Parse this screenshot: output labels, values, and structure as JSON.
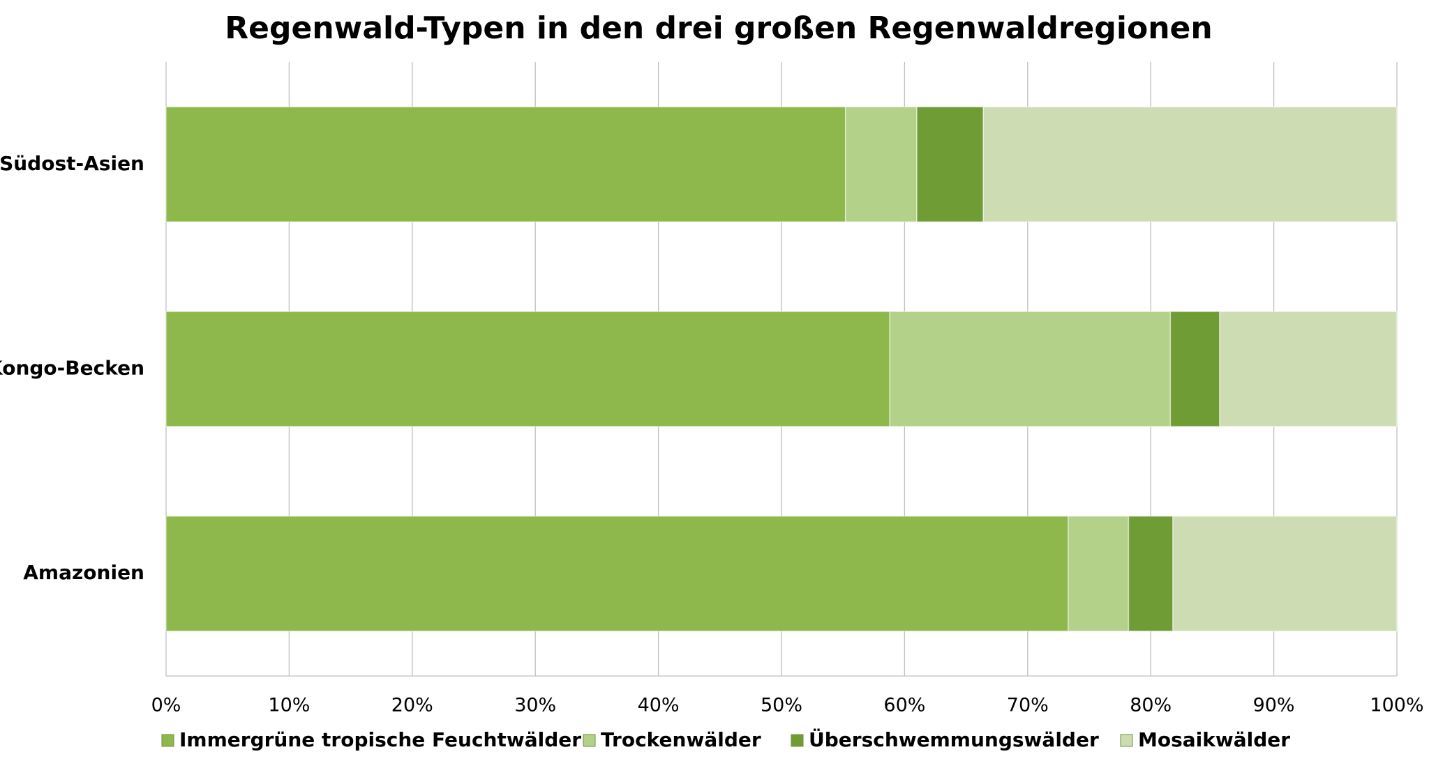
{
  "chart_data": {
    "type": "stacked-bar-horizontal",
    "title": "Regenwald-Typen in den drei großen Regenwaldregionen",
    "categories": [
      "Südost-Asien",
      "Kongo-Becken",
      "Amazonien"
    ],
    "series": [
      {
        "name": "Immergrüne tropische Feuchtwälder",
        "color": "#8fb84c",
        "values": [
          55.2,
          58.8,
          73.3
        ]
      },
      {
        "name": "Trockenwälder",
        "color": "#b3d188",
        "values": [
          5.8,
          22.8,
          4.9
        ]
      },
      {
        "name": "Überschwemmungswälder",
        "color": "#709c35",
        "values": [
          5.4,
          4.0,
          3.6
        ]
      },
      {
        "name": "Mosaikwälder",
        "color": "#cddcb3",
        "values": [
          33.6,
          14.4,
          18.2
        ]
      }
    ],
    "xlim": [
      0,
      100
    ],
    "xticks": [
      {
        "value": 0,
        "label": "0%"
      },
      {
        "value": 10,
        "label": "10%"
      },
      {
        "value": 20,
        "label": "20%"
      },
      {
        "value": 30,
        "label": "30%"
      },
      {
        "value": 40,
        "label": "40%"
      },
      {
        "value": 50,
        "label": "50%"
      },
      {
        "value": 60,
        "label": "60%"
      },
      {
        "value": 70,
        "label": "70%"
      },
      {
        "value": 80,
        "label": "80%"
      },
      {
        "value": 90,
        "label": "90%"
      },
      {
        "value": 100,
        "label": "100%"
      }
    ],
    "grid": true,
    "legend": "bottom"
  }
}
